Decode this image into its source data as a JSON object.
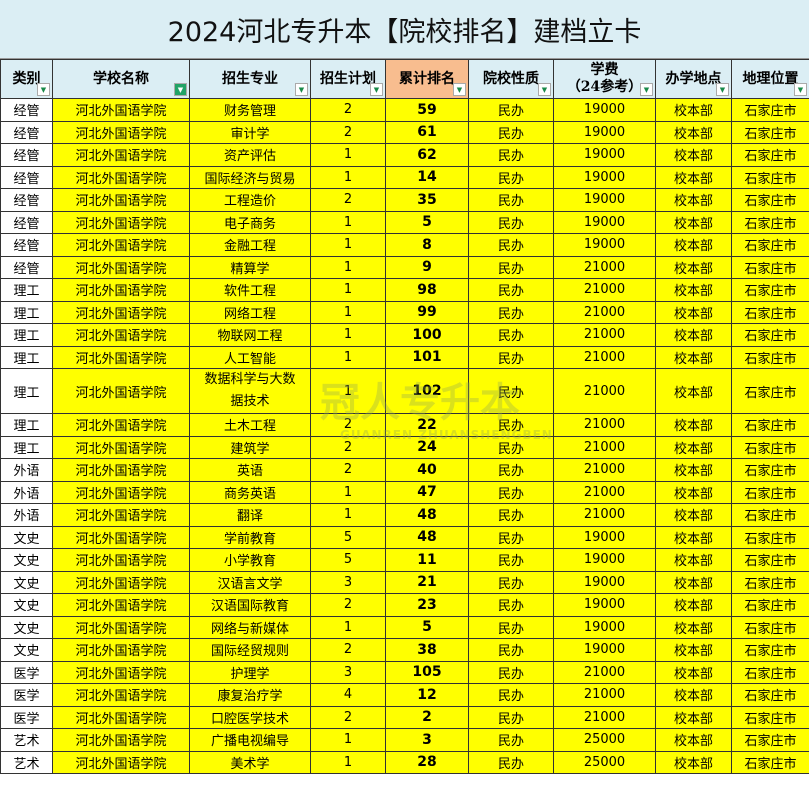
{
  "title": "2024河北专升本【院校排名】建档立卡",
  "headers": [
    "类别",
    "学校名称",
    "招生专业",
    "招生计划",
    "累计排名",
    "院校性质",
    "学费\n（24参考）",
    "办学地点",
    "地理位置"
  ],
  "watermark": {
    "cn": "冠人专升本",
    "en": "GUANREN ZHUANSHENGBEN"
  },
  "colors": {
    "header": "#dbeef4",
    "rank_header": "#f8bd8f",
    "row": "#ffff00"
  },
  "rows": [
    [
      "经管",
      "河北外国语学院",
      "财务管理",
      "2",
      "59",
      "民办",
      "19000",
      "校本部",
      "石家庄市"
    ],
    [
      "经管",
      "河北外国语学院",
      "审计学",
      "2",
      "61",
      "民办",
      "19000",
      "校本部",
      "石家庄市"
    ],
    [
      "经管",
      "河北外国语学院",
      "资产评估",
      "1",
      "62",
      "民办",
      "19000",
      "校本部",
      "石家庄市"
    ],
    [
      "经管",
      "河北外国语学院",
      "国际经济与贸易",
      "1",
      "14",
      "民办",
      "19000",
      "校本部",
      "石家庄市"
    ],
    [
      "经管",
      "河北外国语学院",
      "工程造价",
      "2",
      "35",
      "民办",
      "19000",
      "校本部",
      "石家庄市"
    ],
    [
      "经管",
      "河北外国语学院",
      "电子商务",
      "1",
      "5",
      "民办",
      "19000",
      "校本部",
      "石家庄市"
    ],
    [
      "经管",
      "河北外国语学院",
      "金融工程",
      "1",
      "8",
      "民办",
      "19000",
      "校本部",
      "石家庄市"
    ],
    [
      "经管",
      "河北外国语学院",
      "精算学",
      "1",
      "9",
      "民办",
      "21000",
      "校本部",
      "石家庄市"
    ],
    [
      "理工",
      "河北外国语学院",
      "软件工程",
      "1",
      "98",
      "民办",
      "21000",
      "校本部",
      "石家庄市"
    ],
    [
      "理工",
      "河北外国语学院",
      "网络工程",
      "1",
      "99",
      "民办",
      "21000",
      "校本部",
      "石家庄市"
    ],
    [
      "理工",
      "河北外国语学院",
      "物联网工程",
      "1",
      "100",
      "民办",
      "21000",
      "校本部",
      "石家庄市"
    ],
    [
      "理工",
      "河北外国语学院",
      "人工智能",
      "1",
      "101",
      "民办",
      "21000",
      "校本部",
      "石家庄市"
    ],
    [
      "理工",
      "河北外国语学院",
      "数据科学与大数据技术",
      "1",
      "102",
      "民办",
      "21000",
      "校本部",
      "石家庄市"
    ],
    [
      "理工",
      "河北外国语学院",
      "土木工程",
      "2",
      "22",
      "民办",
      "21000",
      "校本部",
      "石家庄市"
    ],
    [
      "理工",
      "河北外国语学院",
      "建筑学",
      "2",
      "24",
      "民办",
      "21000",
      "校本部",
      "石家庄市"
    ],
    [
      "外语",
      "河北外国语学院",
      "英语",
      "2",
      "40",
      "民办",
      "21000",
      "校本部",
      "石家庄市"
    ],
    [
      "外语",
      "河北外国语学院",
      "商务英语",
      "1",
      "47",
      "民办",
      "21000",
      "校本部",
      "石家庄市"
    ],
    [
      "外语",
      "河北外国语学院",
      "翻译",
      "1",
      "48",
      "民办",
      "21000",
      "校本部",
      "石家庄市"
    ],
    [
      "文史",
      "河北外国语学院",
      "学前教育",
      "5",
      "48",
      "民办",
      "19000",
      "校本部",
      "石家庄市"
    ],
    [
      "文史",
      "河北外国语学院",
      "小学教育",
      "5",
      "11",
      "民办",
      "19000",
      "校本部",
      "石家庄市"
    ],
    [
      "文史",
      "河北外国语学院",
      "汉语言文学",
      "3",
      "21",
      "民办",
      "19000",
      "校本部",
      "石家庄市"
    ],
    [
      "文史",
      "河北外国语学院",
      "汉语国际教育",
      "2",
      "23",
      "民办",
      "19000",
      "校本部",
      "石家庄市"
    ],
    [
      "文史",
      "河北外国语学院",
      "网络与新媒体",
      "1",
      "5",
      "民办",
      "19000",
      "校本部",
      "石家庄市"
    ],
    [
      "文史",
      "河北外国语学院",
      "国际经贸规则",
      "2",
      "38",
      "民办",
      "19000",
      "校本部",
      "石家庄市"
    ],
    [
      "医学",
      "河北外国语学院",
      "护理学",
      "3",
      "105",
      "民办",
      "21000",
      "校本部",
      "石家庄市"
    ],
    [
      "医学",
      "河北外国语学院",
      "康复治疗学",
      "4",
      "12",
      "民办",
      "21000",
      "校本部",
      "石家庄市"
    ],
    [
      "医学",
      "河北外国语学院",
      "口腔医学技术",
      "2",
      "2",
      "民办",
      "21000",
      "校本部",
      "石家庄市"
    ],
    [
      "艺术",
      "河北外国语学院",
      "广播电视编导",
      "1",
      "3",
      "民办",
      "25000",
      "校本部",
      "石家庄市"
    ],
    [
      "艺术",
      "河北外国语学院",
      "美术学",
      "1",
      "28",
      "民办",
      "25000",
      "校本部",
      "石家庄市"
    ]
  ]
}
